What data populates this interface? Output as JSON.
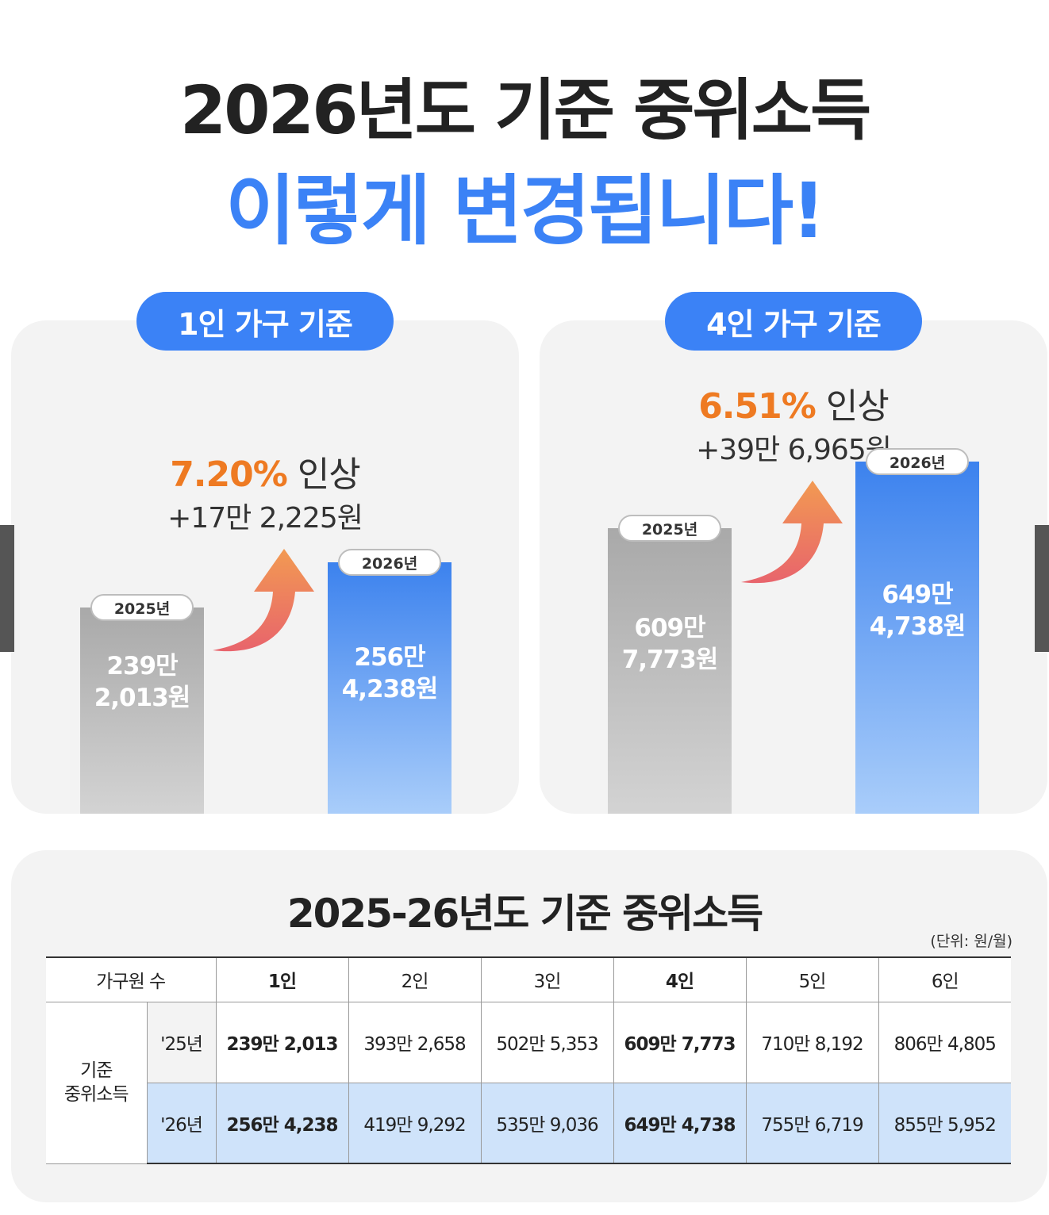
{
  "header": {
    "title_line1": "2026년도 기준 중위소득",
    "title_line2": "이렇게 변경됩니다!"
  },
  "colors": {
    "accent_blue": "#3b82f6",
    "increase_orange": "#ee7a22",
    "bar_2025": "#b5b5b5",
    "bar_2026": "#3c82ee"
  },
  "chart_data": [
    {
      "type": "bar",
      "title": "1인 가구 기준",
      "categories": [
        "2025년",
        "2026년"
      ],
      "values": [
        2392013,
        2564238
      ],
      "value_labels": [
        [
          "239만",
          "2,013원"
        ],
        [
          "256만",
          "4,238원"
        ]
      ],
      "increase_pct": "7.20%",
      "increase_word": " 인상",
      "increase_amount": "+17만 2,225원"
    },
    {
      "type": "bar",
      "title": "4인 가구 기준",
      "categories": [
        "2025년",
        "2026년"
      ],
      "values": [
        6097773,
        6494738
      ],
      "value_labels": [
        [
          "609만",
          "7,773원"
        ],
        [
          "649만",
          "4,738원"
        ]
      ],
      "increase_pct": "6.51%",
      "increase_word": " 인상",
      "increase_amount": "+39만 6,965원"
    }
  ],
  "table": {
    "title": "2025-26년도 기준 중위소득",
    "unit": "(단위: 원/월)",
    "header_label": "가구원 수",
    "columns": [
      "1인",
      "2인",
      "3인",
      "4인",
      "5인",
      "6인"
    ],
    "row_group_label_line1": "기준",
    "row_group_label_line2": "중위소득",
    "rows": [
      {
        "year": "'25년",
        "values": [
          "239만 2,013",
          "393만 2,658",
          "502만 5,353",
          "609만 7,773",
          "710만 8,192",
          "806만 4,805"
        ]
      },
      {
        "year": "'26년",
        "values": [
          "256만 4,238",
          "419만 9,292",
          "535만 9,036",
          "649만 4,738",
          "755만 6,719",
          "855만 5,952"
        ]
      }
    ]
  }
}
